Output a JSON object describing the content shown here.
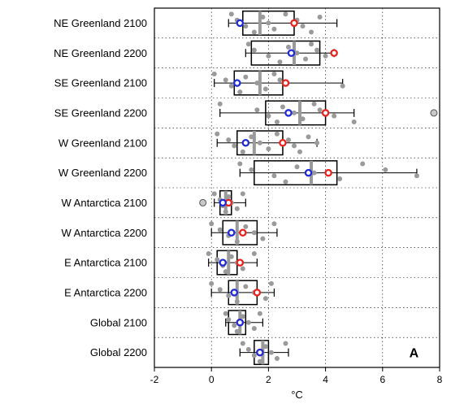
{
  "chart_data": {
    "type": "boxplot",
    "panel_label": "A",
    "xlabel": "°C",
    "xlim": [
      -2,
      8
    ],
    "x_ticks": [
      -2,
      0,
      2,
      4,
      6,
      8
    ],
    "x_tick_labels": [
      "-2",
      "0",
      "2",
      "4",
      "6",
      "8"
    ],
    "grid": "dotted",
    "categories": [
      "NE Greenland 2100",
      "NE Greenland 2200",
      "SE Greenland 2100",
      "SE Greenland 2200",
      "W Greenland 2100",
      "W Greenland 2200",
      "W Antarctica 2100",
      "W Antarctica 2200",
      "E Antarctica 2100",
      "E Antarctica 2200",
      "Global 2100",
      "Global 2200"
    ],
    "colors": {
      "median": "#9a9a9a",
      "points": "#9a9a9a",
      "blue_marker": "#1f2bd8",
      "red_marker": "#e8231e",
      "box": "#000000"
    },
    "rows": [
      {
        "whisker": [
          0.6,
          4.4
        ],
        "box": [
          1.1,
          2.9
        ],
        "median": 1.7,
        "blue": 1.0,
        "red": 2.9,
        "points": [
          0.7,
          0.9,
          1.2,
          1.5,
          1.8,
          2.0,
          2.2,
          2.6,
          3.0,
          3.2,
          3.5,
          3.8
        ]
      },
      {
        "whisker": [
          1.2,
          4.3
        ],
        "box": [
          1.4,
          3.8
        ],
        "median": 2.9,
        "blue": 2.8,
        "red": 4.3,
        "points": [
          1.3,
          1.5,
          2.0,
          2.4,
          2.7,
          3.0,
          3.3,
          3.5,
          3.7,
          4.0
        ]
      },
      {
        "whisker": [
          0.1,
          4.6
        ],
        "box": [
          0.8,
          2.5
        ],
        "median": 1.7,
        "blue": 0.9,
        "red": 2.6,
        "points": [
          0.1,
          0.5,
          0.7,
          1.0,
          1.2,
          1.6,
          1.9,
          2.2,
          2.4,
          4.6
        ]
      },
      {
        "whisker": [
          0.3,
          5.0
        ],
        "box": [
          1.9,
          4.0
        ],
        "median": 3.1,
        "blue": 2.7,
        "red": 4.0,
        "points": [
          0.3,
          1.6,
          2.0,
          2.3,
          2.5,
          2.9,
          3.2,
          3.6,
          3.8,
          4.3,
          5.0
        ]
      },
      {
        "whisker": [
          0.2,
          3.7
        ],
        "box": [
          0.9,
          2.5
        ],
        "median": 1.5,
        "blue": 1.2,
        "red": 2.5,
        "points": [
          0.2,
          0.6,
          0.8,
          1.1,
          1.4,
          1.7,
          2.0,
          2.3,
          2.7,
          2.9,
          3.1,
          3.4,
          3.7
        ]
      },
      {
        "whisker": [
          1.0,
          7.2
        ],
        "box": [
          1.5,
          4.4
        ],
        "median": 3.5,
        "blue": 3.4,
        "red": 4.1,
        "points": [
          1.0,
          1.4,
          2.2,
          2.6,
          3.0,
          3.6,
          4.5,
          5.3,
          6.1,
          7.2
        ]
      },
      {
        "whisker": [
          0.1,
          1.2
        ],
        "box": [
          0.3,
          0.7
        ],
        "median": 0.5,
        "blue": 0.4,
        "red": 0.6,
        "points": [
          0.1,
          0.3,
          0.4,
          0.5,
          0.6,
          0.7,
          0.9,
          1.1
        ]
      },
      {
        "whisker": [
          0.0,
          2.3
        ],
        "box": [
          0.4,
          1.6
        ],
        "median": 0.9,
        "blue": 0.7,
        "red": 1.1,
        "points": [
          0.0,
          0.3,
          0.6,
          0.9,
          1.2,
          1.5,
          1.8,
          2.2
        ]
      },
      {
        "whisker": [
          -0.1,
          1.6
        ],
        "box": [
          0.2,
          0.9
        ],
        "median": 0.6,
        "blue": 0.4,
        "red": 1.0,
        "points": [
          -0.1,
          0.2,
          0.4,
          0.5,
          0.7,
          0.9,
          1.1,
          1.5
        ]
      },
      {
        "whisker": [
          0.0,
          2.2
        ],
        "box": [
          0.6,
          1.6
        ],
        "median": 0.9,
        "blue": 0.8,
        "red": 1.6,
        "points": [
          0.0,
          0.3,
          0.6,
          0.9,
          1.2,
          1.5,
          1.9,
          2.1
        ]
      },
      {
        "whisker": [
          0.5,
          1.8
        ],
        "box": [
          0.6,
          1.2
        ],
        "median": 1.0,
        "blue": 1.0,
        "red": 1.0,
        "points": [
          0.5,
          0.6,
          0.8,
          0.9,
          1.1,
          1.3,
          1.5,
          1.7
        ]
      },
      {
        "whisker": [
          1.0,
          2.7
        ],
        "box": [
          1.5,
          2.0
        ],
        "median": 1.8,
        "blue": 1.7,
        "red": 1.7,
        "points": [
          1.1,
          1.3,
          1.5,
          1.7,
          1.9,
          2.1,
          2.3,
          2.6
        ]
      }
    ],
    "outliers": [
      {
        "row": 3,
        "x": 7.8
      },
      {
        "row": 6,
        "x": -0.3
      }
    ]
  }
}
